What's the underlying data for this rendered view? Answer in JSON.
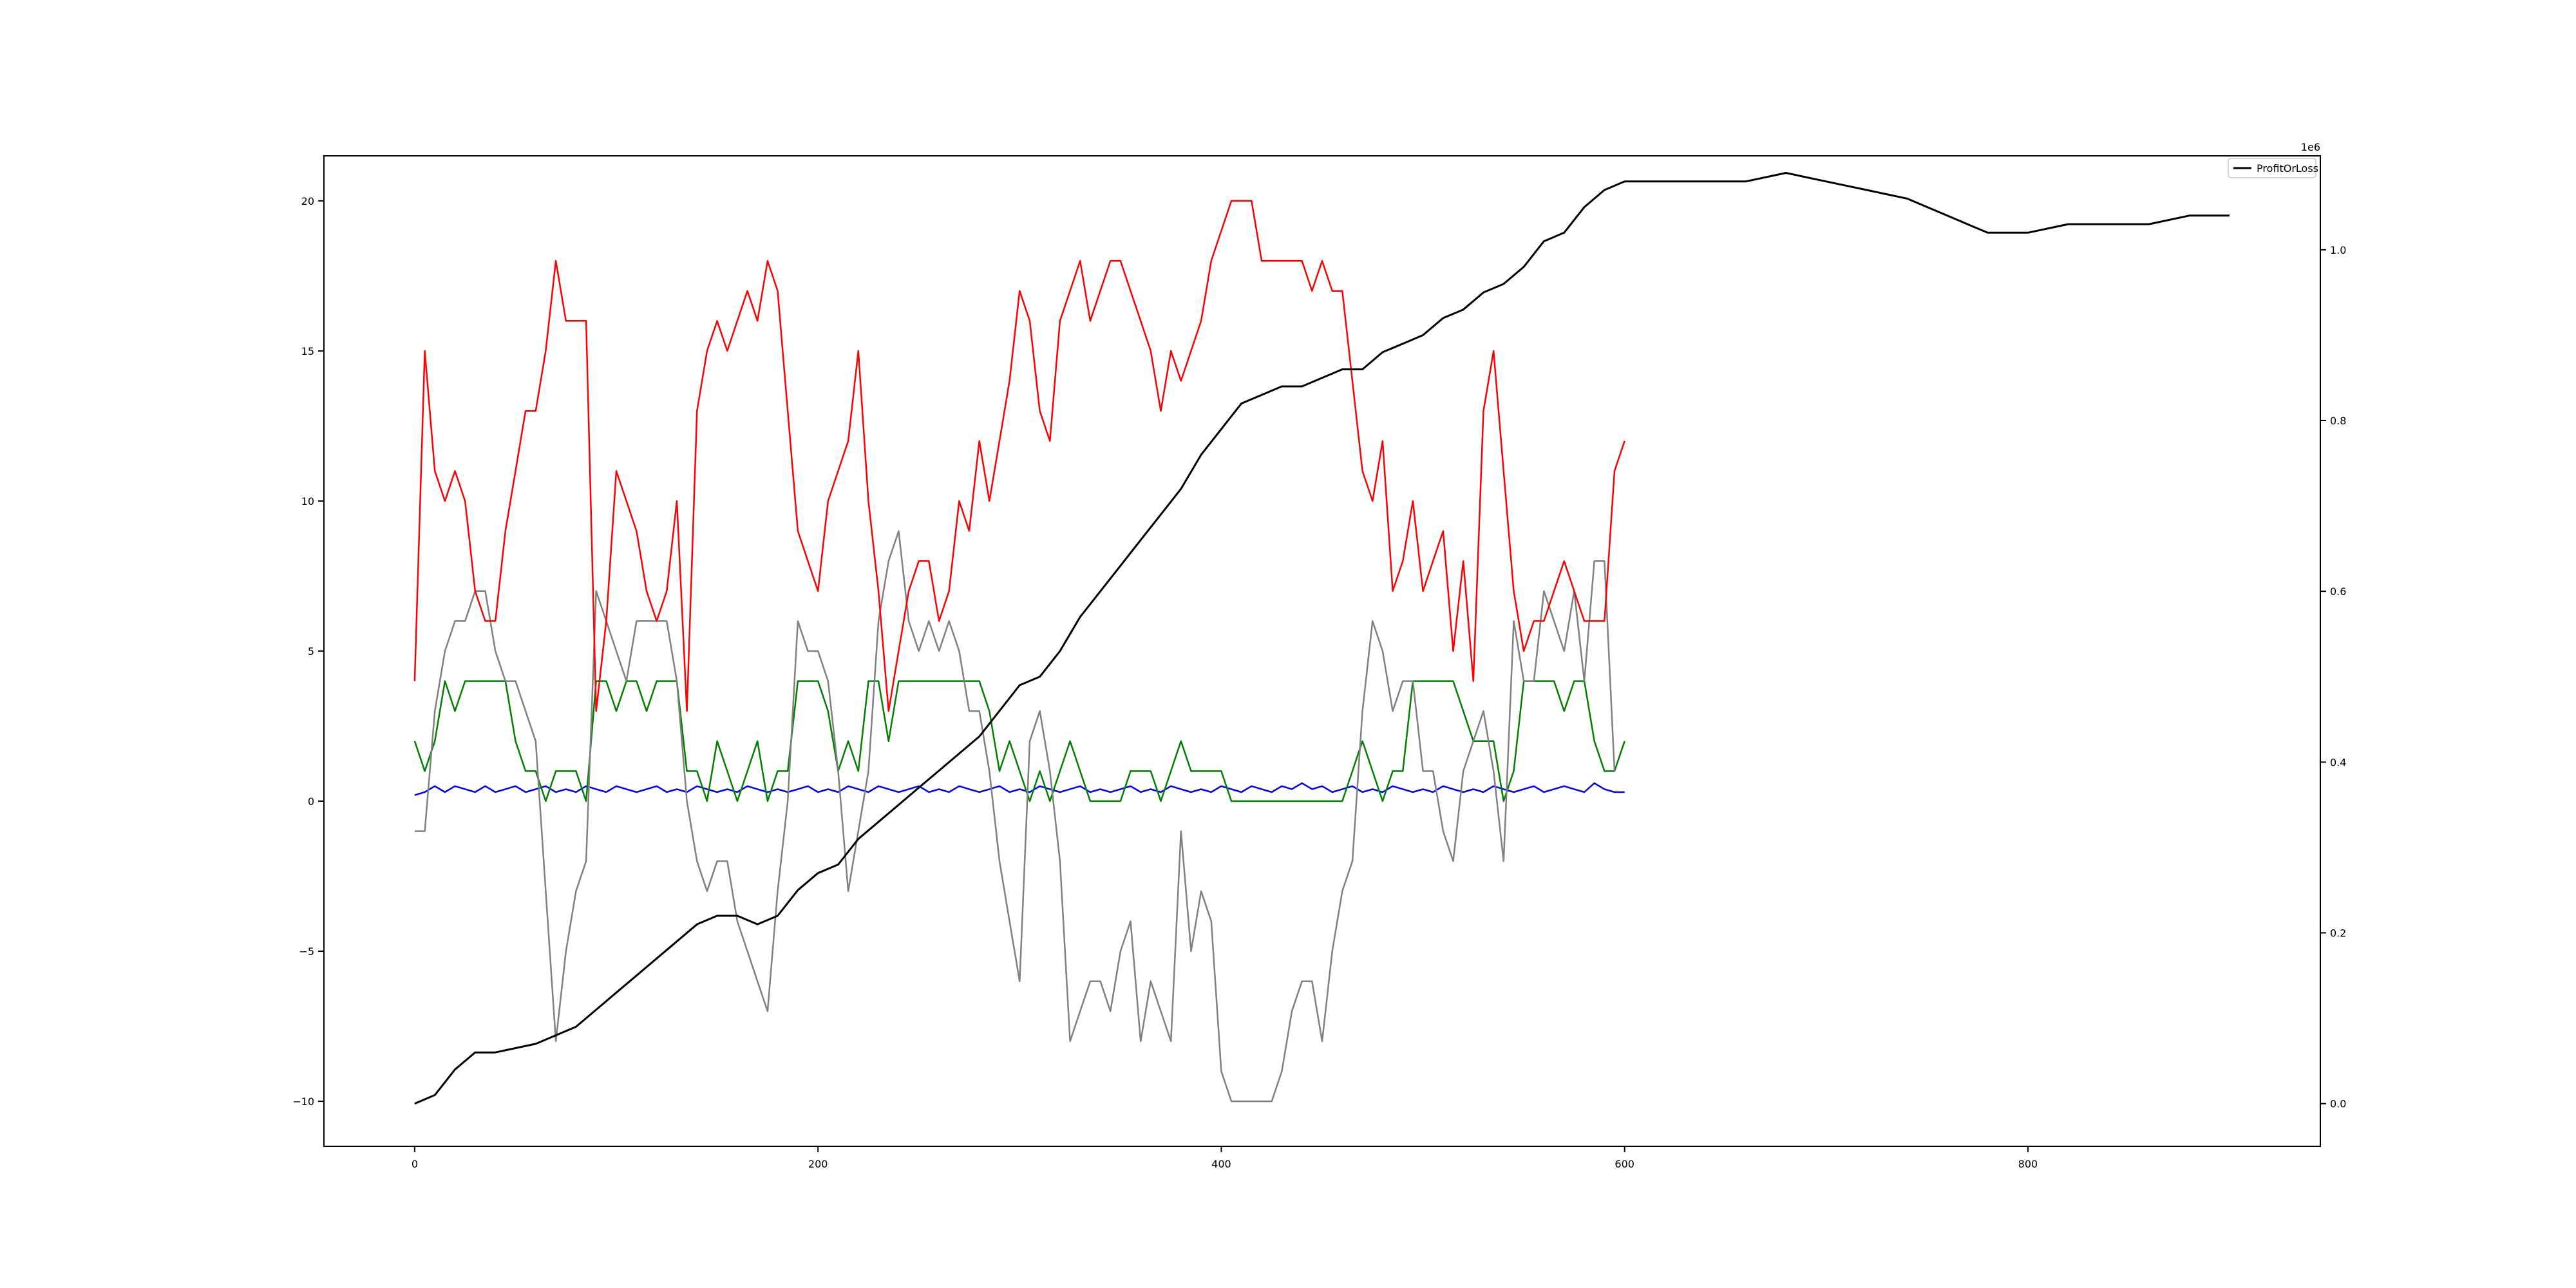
{
  "chart_data": {
    "type": "line",
    "title": "",
    "xlabel": "",
    "ylabel": "",
    "xlim": [
      -45,
      945
    ],
    "ylim_left": [
      -11.5,
      21.5
    ],
    "ylim_right": [
      -0.05,
      1.11
    ],
    "xticks": [
      0,
      200,
      400,
      600,
      800
    ],
    "xtick_labels": [
      "0",
      "200",
      "400",
      "600",
      "800"
    ],
    "yticks_left": [
      -10,
      -5,
      0,
      5,
      10,
      15,
      20
    ],
    "ytick_labels_left": [
      "−10",
      "−5",
      "0",
      "5",
      "10",
      "15",
      "20"
    ],
    "yticks_right": [
      0.0,
      0.2,
      0.4,
      0.6,
      0.8,
      1.0
    ],
    "ytick_labels_right": [
      "0.0",
      "0.2",
      "0.4",
      "0.6",
      "0.8",
      "1.0"
    ],
    "right_axis_offset": "1e6",
    "grid": false,
    "legend_position": "top-right",
    "legend": [
      "ProfitOrLoss"
    ],
    "series": [
      {
        "name": "ProfitOrLoss",
        "axis": "right",
        "color": "#000000",
        "x": [
          0,
          10,
          20,
          30,
          40,
          50,
          60,
          70,
          80,
          90,
          100,
          110,
          120,
          130,
          140,
          150,
          160,
          170,
          180,
          190,
          200,
          210,
          220,
          230,
          240,
          250,
          260,
          270,
          280,
          290,
          300,
          310,
          320,
          330,
          340,
          350,
          360,
          370,
          380,
          390,
          400,
          410,
          420,
          430,
          440,
          450,
          460,
          470,
          480,
          490,
          500,
          510,
          520,
          530,
          540,
          550,
          560,
          570,
          580,
          590,
          600,
          620,
          640,
          660,
          680,
          700,
          720,
          740,
          760,
          780,
          800,
          820,
          840,
          860,
          880,
          900
        ],
        "y": [
          0.0,
          0.01,
          0.04,
          0.06,
          0.06,
          0.065,
          0.07,
          0.08,
          0.09,
          0.11,
          0.13,
          0.15,
          0.17,
          0.19,
          0.21,
          0.22,
          0.22,
          0.21,
          0.22,
          0.25,
          0.27,
          0.28,
          0.31,
          0.33,
          0.35,
          0.37,
          0.39,
          0.41,
          0.43,
          0.46,
          0.49,
          0.5,
          0.53,
          0.57,
          0.6,
          0.63,
          0.66,
          0.69,
          0.72,
          0.76,
          0.79,
          0.82,
          0.83,
          0.84,
          0.84,
          0.85,
          0.86,
          0.86,
          0.88,
          0.89,
          0.9,
          0.92,
          0.93,
          0.95,
          0.96,
          0.98,
          1.01,
          1.02,
          1.05,
          1.07,
          1.08,
          1.08,
          1.08,
          1.08,
          1.09,
          1.08,
          1.07,
          1.06,
          1.04,
          1.02,
          1.02,
          1.03,
          1.03,
          1.03,
          1.04,
          1.04
        ]
      },
      {
        "name": "",
        "axis": "left",
        "color": "#ff0000",
        "x": [
          0,
          5,
          10,
          15,
          20,
          25,
          30,
          35,
          40,
          45,
          50,
          55,
          60,
          65,
          70,
          75,
          80,
          85,
          90,
          95,
          100,
          105,
          110,
          115,
          120,
          125,
          130,
          135,
          140,
          145,
          150,
          155,
          160,
          165,
          170,
          175,
          180,
          185,
          190,
          195,
          200,
          205,
          210,
          215,
          220,
          225,
          230,
          235,
          240,
          245,
          250,
          255,
          260,
          265,
          270,
          275,
          280,
          285,
          290,
          295,
          300,
          305,
          310,
          315,
          320,
          325,
          330,
          335,
          340,
          345,
          350,
          355,
          360,
          365,
          370,
          375,
          380,
          385,
          390,
          395,
          400,
          405,
          410,
          415,
          420,
          425,
          430,
          435,
          440,
          445,
          450,
          455,
          460,
          465,
          470,
          475,
          480,
          485,
          490,
          495,
          500,
          505,
          510,
          515,
          520,
          525,
          530,
          535,
          540,
          545,
          550,
          555,
          560,
          565,
          570,
          575,
          580,
          585,
          590,
          595,
          600
        ],
        "y": [
          4,
          15,
          11,
          10,
          11,
          10,
          7,
          6,
          6,
          9,
          11,
          13,
          13,
          15,
          18,
          16,
          16,
          16,
          3,
          6,
          11,
          10,
          9,
          7,
          6,
          7,
          10,
          3,
          13,
          15,
          16,
          15,
          16,
          17,
          16,
          18,
          17,
          13,
          9,
          8,
          7,
          10,
          11,
          12,
          15,
          10,
          7,
          3,
          5,
          7,
          8,
          8,
          6,
          7,
          10,
          9,
          12,
          10,
          12,
          14,
          17,
          16,
          13,
          12,
          16,
          17,
          18,
          16,
          17,
          18,
          18,
          17,
          16,
          15,
          13,
          15,
          14,
          15,
          16,
          18,
          19,
          20,
          20,
          20,
          18,
          18,
          18,
          18,
          18,
          17,
          18,
          17,
          17,
          14,
          11,
          10,
          12,
          7,
          8,
          10,
          7,
          8,
          9,
          5,
          8,
          4,
          13,
          15,
          11,
          7,
          5,
          6,
          6,
          7,
          8,
          7,
          6,
          6,
          6,
          11,
          12
        ]
      },
      {
        "name": "",
        "axis": "left",
        "color": "#808080",
        "x": [
          0,
          5,
          10,
          15,
          20,
          25,
          30,
          35,
          40,
          45,
          50,
          55,
          60,
          65,
          70,
          75,
          80,
          85,
          90,
          95,
          100,
          105,
          110,
          115,
          120,
          125,
          130,
          135,
          140,
          145,
          150,
          155,
          160,
          165,
          170,
          175,
          180,
          185,
          190,
          195,
          200,
          205,
          210,
          215,
          220,
          225,
          230,
          235,
          240,
          245,
          250,
          255,
          260,
          265,
          270,
          275,
          280,
          285,
          290,
          295,
          300,
          305,
          310,
          315,
          320,
          325,
          330,
          335,
          340,
          345,
          350,
          355,
          360,
          365,
          370,
          375,
          380,
          385,
          390,
          395,
          400,
          405,
          410,
          415,
          420,
          425,
          430,
          435,
          440,
          445,
          450,
          455,
          460,
          465,
          470,
          475,
          480,
          485,
          490,
          495,
          500,
          505,
          510,
          515,
          520,
          525,
          530,
          535,
          540,
          545,
          550,
          555,
          560,
          565,
          570,
          575,
          580,
          585,
          590,
          595
        ],
        "y": [
          -1,
          -1,
          3,
          5,
          6,
          6,
          7,
          7,
          5,
          4,
          4,
          3,
          2,
          -3,
          -8,
          -5,
          -3,
          -2,
          7,
          6,
          5,
          4,
          6,
          6,
          6,
          6,
          4,
          0,
          -2,
          -3,
          -2,
          -2,
          -4,
          -5,
          -6,
          -7,
          -3,
          0,
          6,
          5,
          5,
          4,
          1,
          -3,
          -1,
          1,
          6,
          8,
          9,
          6,
          5,
          6,
          5,
          6,
          5,
          3,
          3,
          1,
          -2,
          -4,
          -6,
          2,
          3,
          1,
          -2,
          -8,
          -7,
          -6,
          -6,
          -7,
          -5,
          -4,
          -8,
          -6,
          -7,
          -8,
          -1,
          -5,
          -3,
          -4,
          -9,
          -10,
          -10,
          -10,
          -10,
          -10,
          -9,
          -7,
          -6,
          -6,
          -8,
          -5,
          -3,
          -2,
          3,
          6,
          5,
          3,
          4,
          4,
          1,
          1,
          -1,
          -2,
          1,
          2,
          3,
          1,
          -2,
          6,
          4,
          4,
          7,
          6,
          5,
          7,
          4,
          8,
          8,
          1
        ]
      },
      {
        "name": "",
        "axis": "left",
        "color": "#008000",
        "x": [
          0,
          5,
          10,
          15,
          20,
          25,
          30,
          35,
          40,
          45,
          50,
          55,
          60,
          65,
          70,
          75,
          80,
          85,
          90,
          95,
          100,
          105,
          110,
          115,
          120,
          125,
          130,
          135,
          140,
          145,
          150,
          155,
          160,
          165,
          170,
          175,
          180,
          185,
          190,
          195,
          200,
          205,
          210,
          215,
          220,
          225,
          230,
          235,
          240,
          245,
          250,
          255,
          260,
          265,
          270,
          275,
          280,
          285,
          290,
          295,
          300,
          305,
          310,
          315,
          320,
          325,
          330,
          335,
          340,
          345,
          350,
          355,
          360,
          365,
          370,
          375,
          380,
          385,
          390,
          395,
          400,
          405,
          410,
          415,
          420,
          425,
          430,
          435,
          440,
          445,
          450,
          455,
          460,
          465,
          470,
          475,
          480,
          485,
          490,
          495,
          500,
          505,
          510,
          515,
          520,
          525,
          530,
          535,
          540,
          545,
          550,
          555,
          560,
          565,
          570,
          575,
          580,
          585,
          590,
          595,
          600
        ],
        "y": [
          2,
          1,
          2,
          4,
          3,
          4,
          4,
          4,
          4,
          4,
          2,
          1,
          1,
          0,
          1,
          1,
          1,
          0,
          4,
          4,
          3,
          4,
          4,
          3,
          4,
          4,
          4,
          1,
          1,
          0,
          2,
          1,
          0,
          1,
          2,
          0,
          1,
          1,
          4,
          4,
          4,
          3,
          1,
          2,
          1,
          4,
          4,
          2,
          4,
          4,
          4,
          4,
          4,
          4,
          4,
          4,
          4,
          3,
          1,
          2,
          1,
          0,
          1,
          0,
          1,
          2,
          1,
          0,
          0,
          0,
          0,
          1,
          1,
          1,
          0,
          1,
          2,
          1,
          1,
          1,
          1,
          0,
          0,
          0,
          0,
          0,
          0,
          0,
          0,
          0,
          0,
          0,
          0,
          1,
          2,
          1,
          0,
          1,
          1,
          4,
          4,
          4,
          4,
          4,
          3,
          2,
          2,
          2,
          0,
          1,
          4,
          4,
          4,
          4,
          3,
          4,
          4,
          2,
          1,
          1,
          2
        ]
      },
      {
        "name": "",
        "axis": "left",
        "color": "#0000ff",
        "x": [
          0,
          5,
          10,
          15,
          20,
          25,
          30,
          35,
          40,
          45,
          50,
          55,
          60,
          65,
          70,
          75,
          80,
          85,
          90,
          95,
          100,
          105,
          110,
          115,
          120,
          125,
          130,
          135,
          140,
          145,
          150,
          155,
          160,
          165,
          170,
          175,
          180,
          185,
          190,
          195,
          200,
          205,
          210,
          215,
          220,
          225,
          230,
          235,
          240,
          245,
          250,
          255,
          260,
          265,
          270,
          275,
          280,
          285,
          290,
          295,
          300,
          305,
          310,
          315,
          320,
          325,
          330,
          335,
          340,
          345,
          350,
          355,
          360,
          365,
          370,
          375,
          380,
          385,
          390,
          395,
          400,
          405,
          410,
          415,
          420,
          425,
          430,
          435,
          440,
          445,
          450,
          455,
          460,
          465,
          470,
          475,
          480,
          485,
          490,
          495,
          500,
          505,
          510,
          515,
          520,
          525,
          530,
          535,
          540,
          545,
          550,
          555,
          560,
          565,
          570,
          575,
          580,
          585,
          590,
          595,
          600
        ],
        "y": [
          0.2,
          0.3,
          0.5,
          0.3,
          0.5,
          0.4,
          0.3,
          0.5,
          0.3,
          0.4,
          0.5,
          0.3,
          0.4,
          0.5,
          0.3,
          0.4,
          0.3,
          0.5,
          0.4,
          0.3,
          0.5,
          0.4,
          0.3,
          0.4,
          0.5,
          0.3,
          0.4,
          0.3,
          0.5,
          0.4,
          0.3,
          0.4,
          0.3,
          0.5,
          0.4,
          0.3,
          0.4,
          0.3,
          0.4,
          0.5,
          0.3,
          0.4,
          0.3,
          0.5,
          0.4,
          0.3,
          0.5,
          0.4,
          0.3,
          0.4,
          0.5,
          0.3,
          0.4,
          0.3,
          0.5,
          0.4,
          0.3,
          0.4,
          0.5,
          0.3,
          0.4,
          0.3,
          0.5,
          0.4,
          0.3,
          0.4,
          0.5,
          0.3,
          0.4,
          0.3,
          0.4,
          0.5,
          0.3,
          0.4,
          0.3,
          0.5,
          0.4,
          0.3,
          0.4,
          0.3,
          0.5,
          0.4,
          0.3,
          0.5,
          0.4,
          0.3,
          0.5,
          0.4,
          0.6,
          0.4,
          0.5,
          0.3,
          0.4,
          0.5,
          0.3,
          0.4,
          0.3,
          0.5,
          0.4,
          0.3,
          0.4,
          0.3,
          0.5,
          0.4,
          0.3,
          0.4,
          0.3,
          0.5,
          0.4,
          0.3,
          0.4,
          0.5,
          0.3,
          0.4,
          0.5,
          0.4,
          0.3,
          0.6,
          0.4,
          0.3,
          0.3
        ]
      }
    ]
  }
}
